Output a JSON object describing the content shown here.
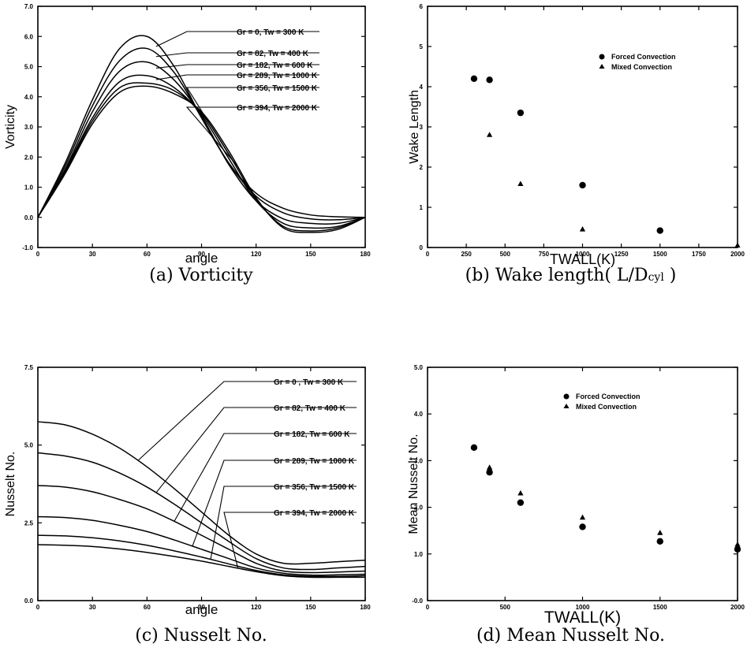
{
  "captions": {
    "a": "(a) Vorticity",
    "b_main": "(b) Wake length( L/D",
    "b_sub": "cyl",
    "b_end": " )",
    "c": "(c) Nusselt No.",
    "d": "(d) Mean Nusselt No."
  },
  "chart_data": [
    {
      "id": "a",
      "type": "line",
      "ylabel": "Vorticity",
      "xlabel": "angle",
      "xlim": [
        0,
        180
      ],
      "ylim": [
        -1.0,
        7.0
      ],
      "xticks": [
        0,
        30,
        60,
        90,
        120,
        150,
        180
      ],
      "yticks": [
        -1.0,
        0.0,
        1.0,
        2.0,
        3.0,
        4.0,
        5.0,
        6.0,
        7.0
      ],
      "ytick_labels": [
        "-1.0",
        "0.0",
        "1.0",
        "2.0",
        "3.0",
        "4.0",
        "5.0",
        "6.0",
        "7.0"
      ],
      "series": [
        {
          "name": "Gr = 0, Tw = 300 K",
          "x": [
            0,
            15,
            30,
            45,
            60,
            75,
            90,
            105,
            120,
            135,
            150,
            165,
            180
          ],
          "y": [
            0,
            1.8,
            3.9,
            5.6,
            6.0,
            5.0,
            3.3,
            1.8,
            0.8,
            0.3,
            0.08,
            0.02,
            0
          ]
        },
        {
          "name": "Gr = 82, Tw = 400 K",
          "x": [
            0,
            15,
            30,
            45,
            60,
            75,
            90,
            105,
            120,
            135,
            150,
            165,
            180
          ],
          "y": [
            0,
            1.7,
            3.7,
            5.2,
            5.6,
            4.8,
            3.3,
            1.8,
            0.7,
            0.15,
            -0.05,
            -0.08,
            0
          ]
        },
        {
          "name": "Gr = 182, Tw = 600 K",
          "x": [
            0,
            15,
            30,
            45,
            60,
            75,
            90,
            105,
            120,
            135,
            150,
            165,
            180
          ],
          "y": [
            0,
            1.6,
            3.5,
            4.85,
            5.15,
            4.55,
            3.35,
            1.75,
            0.55,
            -0.05,
            -0.2,
            -0.2,
            0
          ]
        },
        {
          "name": "Gr = 289, Tw = 1000 K",
          "x": [
            0,
            15,
            30,
            45,
            60,
            75,
            90,
            105,
            120,
            135,
            150,
            165,
            180
          ],
          "y": [
            0,
            1.55,
            3.3,
            4.5,
            4.7,
            4.3,
            3.4,
            1.95,
            0.55,
            -0.2,
            -0.35,
            -0.3,
            0
          ]
        },
        {
          "name": "Gr = 356, Tw = 1500 K",
          "x": [
            0,
            15,
            30,
            45,
            60,
            75,
            90,
            105,
            120,
            135,
            150,
            165,
            180
          ],
          "y": [
            0,
            1.5,
            3.2,
            4.3,
            4.45,
            4.2,
            3.45,
            2.1,
            0.6,
            -0.3,
            -0.45,
            -0.35,
            0
          ]
        },
        {
          "name": "Gr = 394, Tw = 2000 K",
          "x": [
            0,
            15,
            30,
            45,
            60,
            75,
            90,
            105,
            120,
            135,
            150,
            165,
            180
          ],
          "y": [
            0,
            1.45,
            3.1,
            4.15,
            4.35,
            4.1,
            3.5,
            2.2,
            0.65,
            -0.35,
            -0.5,
            -0.4,
            0
          ]
        }
      ],
      "labels": [
        "Gr = 0, Tw = 300 K",
        "Gr = 82, Tw = 400 K",
        "Gr = 182, Tw = 600 K",
        "Gr = 289, Tw = 1000 K",
        "Gr = 356, Tw = 1500 K",
        "Gr = 394, Tw = 2000 K"
      ],
      "label_anchor_x": [
        65,
        65,
        65,
        65,
        110,
        110
      ],
      "grid": false
    },
    {
      "id": "b",
      "type": "scatter",
      "ylabel": "Wake Length",
      "xlabel": "TWALL(K)",
      "xlim": [
        0,
        2000
      ],
      "ylim": [
        0,
        6
      ],
      "xticks": [
        0,
        250,
        500,
        750,
        1000,
        1250,
        1500,
        1750,
        2000
      ],
      "xtick_labels": [
        "0",
        "250",
        "500",
        "750",
        "1000",
        "1250",
        "1500",
        "1750",
        "2000"
      ],
      "yticks": [
        0,
        1,
        2,
        3,
        4,
        5,
        6
      ],
      "ytick_labels": [
        "0",
        "1",
        "2",
        "3",
        "4",
        "5",
        "6"
      ],
      "series": [
        {
          "name": "Forced Convection",
          "marker": "circle",
          "x": [
            300,
            400,
            600,
            1000,
            1500
          ],
          "y": [
            4.2,
            4.17,
            3.35,
            1.55,
            0.42
          ]
        },
        {
          "name": "Mixed Convection",
          "marker": "triangle",
          "x": [
            400,
            600,
            1000,
            2000
          ],
          "y": [
            2.8,
            1.58,
            0.45,
            0.05
          ]
        }
      ],
      "legend": "top-right",
      "grid": false
    },
    {
      "id": "c",
      "type": "line",
      "ylabel": "Nusselt No.",
      "xlabel": "angle",
      "xlim": [
        0,
        180
      ],
      "ylim": [
        0,
        7.5
      ],
      "xticks": [
        0,
        30,
        60,
        90,
        120,
        150,
        180
      ],
      "yticks": [
        0,
        2.5,
        5.0,
        7.5
      ],
      "ytick_labels": [
        "0.0",
        "2.5",
        "5.0",
        "7.5"
      ],
      "series": [
        {
          "name": "Gr = 0 , Tw = 300 K",
          "x": [
            0,
            15,
            30,
            45,
            60,
            75,
            90,
            105,
            120,
            135,
            150,
            165,
            180
          ],
          "y": [
            5.75,
            5.65,
            5.35,
            4.9,
            4.3,
            3.6,
            2.85,
            2.1,
            1.5,
            1.2,
            1.2,
            1.25,
            1.3
          ]
        },
        {
          "name": "Gr = 82, Tw = 400 K",
          "x": [
            0,
            15,
            30,
            45,
            60,
            75,
            90,
            105,
            120,
            135,
            150,
            165,
            180
          ],
          "y": [
            4.75,
            4.65,
            4.45,
            4.1,
            3.65,
            3.1,
            2.5,
            1.9,
            1.35,
            1.05,
            1.0,
            1.05,
            1.1
          ]
        },
        {
          "name": "Gr = 182, Tw = 600 K",
          "x": [
            0,
            15,
            30,
            45,
            60,
            75,
            90,
            105,
            120,
            135,
            150,
            165,
            180
          ],
          "y": [
            3.7,
            3.65,
            3.5,
            3.25,
            2.95,
            2.55,
            2.1,
            1.65,
            1.2,
            0.95,
            0.9,
            0.92,
            0.95
          ]
        },
        {
          "name": "Gr = 289, Tw = 1000 K",
          "x": [
            0,
            15,
            30,
            45,
            60,
            75,
            90,
            105,
            120,
            135,
            150,
            165,
            180
          ],
          "y": [
            2.7,
            2.67,
            2.58,
            2.42,
            2.22,
            1.95,
            1.65,
            1.35,
            1.05,
            0.88,
            0.82,
            0.83,
            0.85
          ]
        },
        {
          "name": "Gr = 356, Tw = 1500 K",
          "x": [
            0,
            15,
            30,
            45,
            60,
            75,
            90,
            105,
            120,
            135,
            150,
            165,
            180
          ],
          "y": [
            2.1,
            2.08,
            2.02,
            1.92,
            1.78,
            1.6,
            1.4,
            1.18,
            0.97,
            0.83,
            0.78,
            0.78,
            0.8
          ]
        },
        {
          "name": "Gr = 394, Tw = 2000 K",
          "x": [
            0,
            15,
            30,
            45,
            60,
            75,
            90,
            105,
            120,
            135,
            150,
            165,
            180
          ],
          "y": [
            1.8,
            1.78,
            1.74,
            1.66,
            1.55,
            1.42,
            1.27,
            1.1,
            0.93,
            0.8,
            0.75,
            0.75,
            0.75
          ]
        }
      ],
      "labels": [
        "Gr = 0 , Tw = 300 K",
        "Gr = 82, Tw = 400 K",
        "Gr = 182, Tw = 600 K",
        "Gr = 289, Tw = 1000 K",
        "Gr = 356, Tw = 1500 K",
        "Gr = 394, Tw = 2000 K"
      ],
      "label_anchor_x": [
        55,
        65,
        75,
        85,
        95,
        110
      ],
      "grid": false
    },
    {
      "id": "d",
      "type": "scatter",
      "ylabel": "Mean Nusselt No.",
      "xlabel": "TWALL(K)",
      "xlim": [
        0,
        2000
      ],
      "ylim": [
        0,
        5
      ],
      "xticks": [
        0,
        500,
        1000,
        1500,
        2000
      ],
      "xtick_labels": [
        "0",
        "500",
        "1000",
        "1500",
        "2000"
      ],
      "yticks": [
        0,
        1,
        2,
        3,
        4,
        5
      ],
      "ytick_labels": [
        "-0.0",
        "1.0",
        "2.0",
        "3.0",
        "4.0",
        "5.0"
      ],
      "series": [
        {
          "name": "Forced Convection",
          "marker": "circle",
          "x": [
            300,
            400,
            600,
            1000,
            1500,
            2000
          ],
          "y": [
            3.28,
            2.75,
            2.1,
            1.58,
            1.27,
            1.1
          ]
        },
        {
          "name": "Mixed Convection",
          "marker": "triangle",
          "x": [
            400,
            600,
            1000,
            1500,
            2000
          ],
          "y": [
            2.85,
            2.3,
            1.78,
            1.45,
            1.2
          ]
        }
      ],
      "legend": "top-right",
      "grid": false
    }
  ]
}
